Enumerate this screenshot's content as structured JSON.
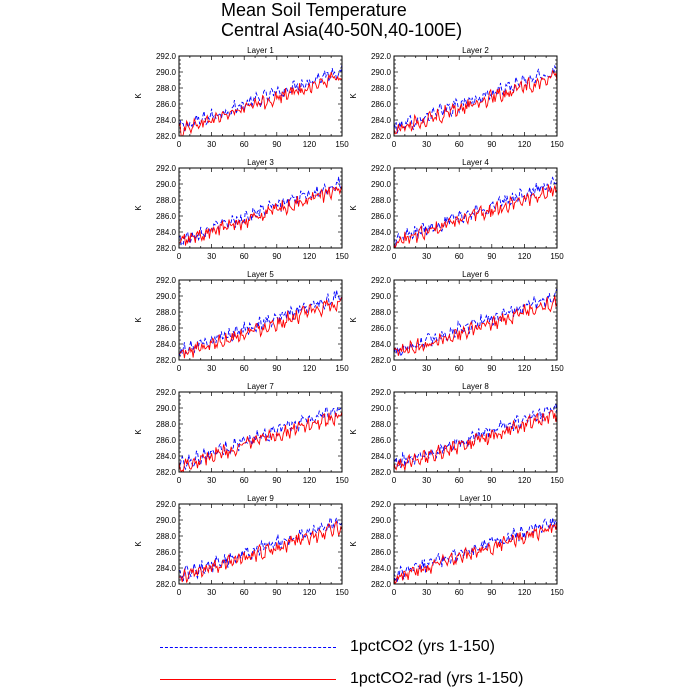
{
  "figure": {
    "title_line1": "Mean Soil Temperature",
    "title_line2": "Central Asia(40-50N,40-100E)"
  },
  "legend": {
    "entries": [
      {
        "label": "1pctCO2 (yrs 1-150)",
        "color": "#0000ff",
        "style": "dashed"
      },
      {
        "label": "1pctCO2-rad (yrs 1-150)",
        "color": "#ff0000",
        "style": "solid"
      }
    ],
    "placement": "bottom"
  },
  "chart_data": [
    {
      "type": "line",
      "title": "Layer 1",
      "ylabel": "K",
      "xlim": [
        0,
        150
      ],
      "ylim": [
        282.0,
        292.0
      ],
      "xticks": [
        "0",
        "30",
        "60",
        "90",
        "120",
        "150"
      ],
      "yticks": [
        "282.0",
        "284.0",
        "286.0",
        "288.0",
        "290.0",
        "292.0"
      ],
      "series": [
        {
          "name": "1pctCO2 (yrs 1-150)",
          "start": 283.0,
          "end": 290.3
        },
        {
          "name": "1pctCO2-rad (yrs 1-150)",
          "start": 282.7,
          "end": 289.5
        }
      ]
    },
    {
      "type": "line",
      "title": "Layer 2",
      "ylabel": "K",
      "xlim": [
        0,
        150
      ],
      "ylim": [
        282.0,
        292.0
      ],
      "xticks": [
        "0",
        "30",
        "60",
        "90",
        "120",
        "150"
      ],
      "yticks": [
        "282.0",
        "284.0",
        "286.0",
        "288.0",
        "290.0",
        "292.0"
      ],
      "series": [
        {
          "name": "1pctCO2 (yrs 1-150)",
          "start": 283.0,
          "end": 290.2
        },
        {
          "name": "1pctCO2-rad (yrs 1-150)",
          "start": 282.7,
          "end": 289.5
        }
      ]
    },
    {
      "type": "line",
      "title": "Layer 3",
      "ylabel": "K",
      "xlim": [
        0,
        150
      ],
      "ylim": [
        282.0,
        292.0
      ],
      "xticks": [
        "0",
        "30",
        "60",
        "90",
        "120",
        "150"
      ],
      "yticks": [
        "282.0",
        "284.0",
        "286.0",
        "288.0",
        "290.0",
        "292.0"
      ],
      "series": [
        {
          "name": "1pctCO2 (yrs 1-150)",
          "start": 283.0,
          "end": 290.2
        },
        {
          "name": "1pctCO2-rad (yrs 1-150)",
          "start": 282.7,
          "end": 289.4
        }
      ]
    },
    {
      "type": "line",
      "title": "Layer 4",
      "ylabel": "K",
      "xlim": [
        0,
        150
      ],
      "ylim": [
        282.0,
        292.0
      ],
      "xticks": [
        "0",
        "30",
        "60",
        "90",
        "120",
        "150"
      ],
      "yticks": [
        "282.0",
        "284.0",
        "286.0",
        "288.0",
        "290.0",
        "292.0"
      ],
      "series": [
        {
          "name": "1pctCO2 (yrs 1-150)",
          "start": 283.0,
          "end": 290.1
        },
        {
          "name": "1pctCO2-rad (yrs 1-150)",
          "start": 282.7,
          "end": 289.4
        }
      ]
    },
    {
      "type": "line",
      "title": "Layer 5",
      "ylabel": "K",
      "xlim": [
        0,
        150
      ],
      "ylim": [
        282.0,
        292.0
      ],
      "xticks": [
        "0",
        "30",
        "60",
        "90",
        "120",
        "150"
      ],
      "yticks": [
        "282.0",
        "284.0",
        "286.0",
        "288.0",
        "290.0",
        "292.0"
      ],
      "series": [
        {
          "name": "1pctCO2 (yrs 1-150)",
          "start": 283.0,
          "end": 290.1
        },
        {
          "name": "1pctCO2-rad (yrs 1-150)",
          "start": 282.7,
          "end": 289.3
        }
      ]
    },
    {
      "type": "line",
      "title": "Layer 6",
      "ylabel": "K",
      "xlim": [
        0,
        150
      ],
      "ylim": [
        282.0,
        292.0
      ],
      "xticks": [
        "0",
        "30",
        "60",
        "90",
        "120",
        "150"
      ],
      "yticks": [
        "282.0",
        "284.0",
        "286.0",
        "288.0",
        "290.0",
        "292.0"
      ],
      "series": [
        {
          "name": "1pctCO2 (yrs 1-150)",
          "start": 283.0,
          "end": 290.0
        },
        {
          "name": "1pctCO2-rad (yrs 1-150)",
          "start": 282.7,
          "end": 289.3
        }
      ]
    },
    {
      "type": "line",
      "title": "Layer 7",
      "ylabel": "K",
      "xlim": [
        0,
        150
      ],
      "ylim": [
        282.0,
        292.0
      ],
      "xticks": [
        "0",
        "30",
        "60",
        "90",
        "120",
        "150"
      ],
      "yticks": [
        "282.0",
        "284.0",
        "286.0",
        "288.0",
        "290.0",
        "292.0"
      ],
      "series": [
        {
          "name": "1pctCO2 (yrs 1-150)",
          "start": 283.0,
          "end": 290.0
        },
        {
          "name": "1pctCO2-rad (yrs 1-150)",
          "start": 282.7,
          "end": 289.2
        }
      ]
    },
    {
      "type": "line",
      "title": "Layer 8",
      "ylabel": "K",
      "xlim": [
        0,
        150
      ],
      "ylim": [
        282.0,
        292.0
      ],
      "xticks": [
        "0",
        "30",
        "60",
        "90",
        "120",
        "150"
      ],
      "yticks": [
        "282.0",
        "284.0",
        "286.0",
        "288.0",
        "290.0",
        "292.0"
      ],
      "series": [
        {
          "name": "1pctCO2 (yrs 1-150)",
          "start": 283.0,
          "end": 289.9
        },
        {
          "name": "1pctCO2-rad (yrs 1-150)",
          "start": 282.7,
          "end": 289.2
        }
      ]
    },
    {
      "type": "line",
      "title": "Layer 9",
      "ylabel": "K",
      "xlim": [
        0,
        150
      ],
      "ylim": [
        282.0,
        292.0
      ],
      "xticks": [
        "0",
        "30",
        "60",
        "90",
        "120",
        "150"
      ],
      "yticks": [
        "282.0",
        "284.0",
        "286.0",
        "288.0",
        "290.0",
        "292.0"
      ],
      "series": [
        {
          "name": "1pctCO2 (yrs 1-150)",
          "start": 283.0,
          "end": 289.9
        },
        {
          "name": "1pctCO2-rad (yrs 1-150)",
          "start": 282.7,
          "end": 289.1
        }
      ]
    },
    {
      "type": "line",
      "title": "Layer 10",
      "ylabel": "K",
      "xlim": [
        0,
        150
      ],
      "ylim": [
        282.0,
        292.0
      ],
      "xticks": [
        "0",
        "30",
        "60",
        "90",
        "120",
        "150"
      ],
      "yticks": [
        "282.0",
        "284.0",
        "286.0",
        "288.0",
        "290.0",
        "292.0"
      ],
      "series": [
        {
          "name": "1pctCO2 (yrs 1-150)",
          "start": 283.0,
          "end": 289.8
        },
        {
          "name": "1pctCO2-rad (yrs 1-150)",
          "start": 282.7,
          "end": 289.1
        }
      ]
    }
  ]
}
